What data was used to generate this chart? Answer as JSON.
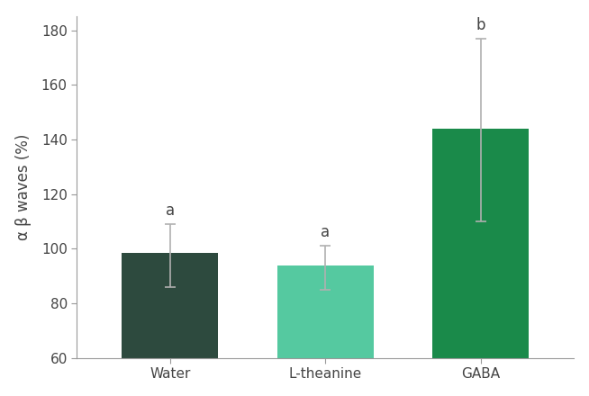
{
  "categories": [
    "Water",
    "L-theanine",
    "GABA"
  ],
  "values": [
    98.5,
    94.0,
    144.0
  ],
  "errors_upper": [
    10.5,
    7.0,
    33.0
  ],
  "errors_lower": [
    12.5,
    9.0,
    34.0
  ],
  "bar_colors": [
    "#2d4a3e",
    "#55c9a0",
    "#1a8a4a"
  ],
  "letters": [
    "a",
    "a",
    "b"
  ],
  "ylabel": "α β waves (%)",
  "ylim": [
    60,
    185
  ],
  "yticks": [
    60,
    80,
    100,
    120,
    140,
    160,
    180
  ],
  "error_color": "#b0b0b0",
  "bar_width": 0.62,
  "letter_fontsize": 12,
  "tick_label_fontsize": 11,
  "ylabel_fontsize": 12,
  "background_color": "#ffffff",
  "spine_color": "#999999",
  "tick_color": "#999999"
}
